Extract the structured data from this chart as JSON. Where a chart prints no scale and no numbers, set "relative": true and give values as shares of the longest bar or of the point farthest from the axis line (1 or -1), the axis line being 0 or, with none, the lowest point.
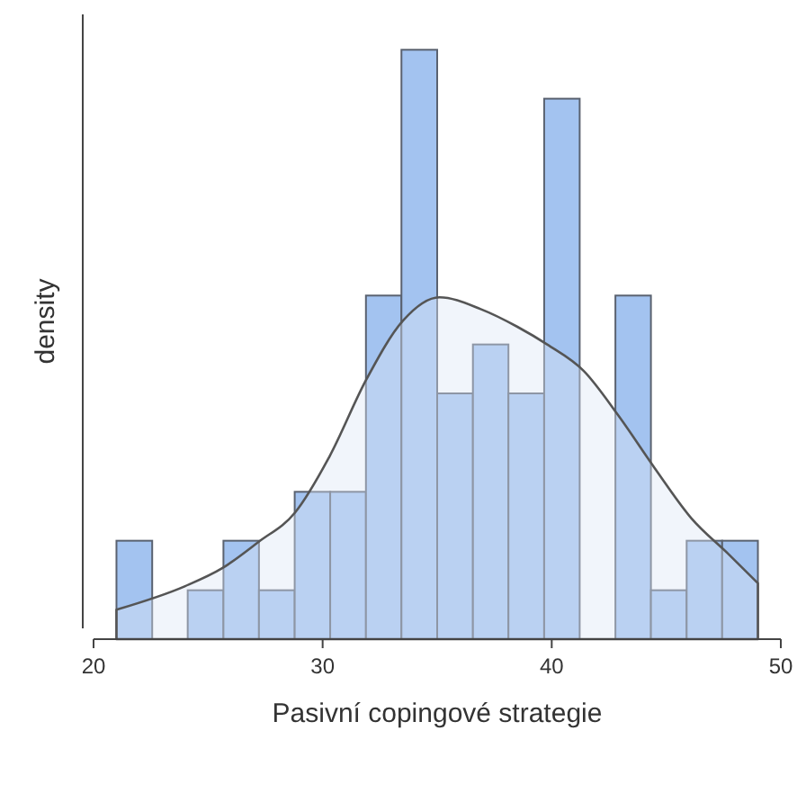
{
  "chart_data": {
    "type": "histogram",
    "relative": true,
    "xlabel": "Pasivní copingové strategie",
    "ylabel": "density",
    "xlim": [
      20,
      50
    ],
    "xticks": [
      20,
      30,
      40,
      50
    ],
    "bins": [
      21,
      22.56,
      24.11,
      25.67,
      27.22,
      28.78,
      30.33,
      31.89,
      33.44,
      35,
      36.56,
      38.11,
      39.67,
      41.22,
      42.78,
      44.33,
      45.89,
      47.44,
      49
    ],
    "values": [
      0.167,
      0,
      0.083,
      0.167,
      0.083,
      0.25,
      0.25,
      0.583,
      1,
      0.417,
      0.5,
      0.417,
      0.917,
      0,
      0.583,
      0.083,
      0.167,
      0.167
    ],
    "color": "#a3c3f0",
    "series": [
      {
        "type": "area",
        "color": "#dbe5f6",
        "x": [
          21,
          24,
          25.6,
          27.2,
          28.8,
          30.3,
          31.9,
          33.5,
          35.1,
          36.9,
          38.5,
          39.8,
          41.4,
          42.9,
          44.5,
          46.1,
          47.7,
          49
        ],
        "values": [
          0.05,
          0.09,
          0.12,
          0.165,
          0.215,
          0.31,
          0.44,
          0.54,
          0.58,
          0.56,
          0.53,
          0.5,
          0.455,
          0.38,
          0.29,
          0.205,
          0.145,
          0.095
        ]
      }
    ]
  }
}
